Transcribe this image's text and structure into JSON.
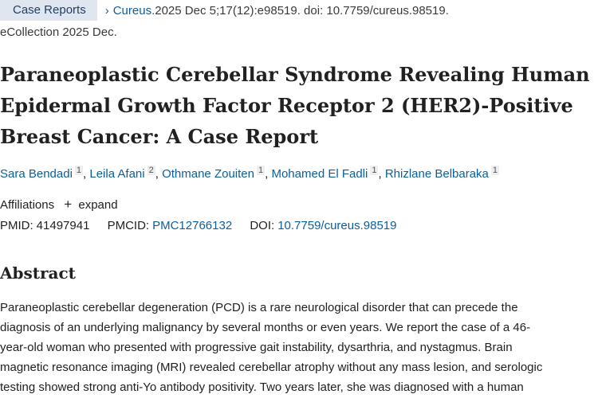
{
  "header": {
    "article_type": "Case Reports",
    "journal": "Cureus.",
    "citation": " 2025 Dec 5;17(12):e98519. doi: 10.7759/cureus.98519.",
    "ecollection": "eCollection 2025 Dec."
  },
  "title": "Paraneoplastic Cerebellar Syndrome Revealing Human Epidermal Growth Factor Receptor 2 (HER2)-Positive Breast Cancer: A Case Report",
  "authors": [
    {
      "name": "Sara Bendadi",
      "aff": "1"
    },
    {
      "name": "Leila Afani",
      "aff": "2"
    },
    {
      "name": "Othmane Zouiten",
      "aff": "1"
    },
    {
      "name": "Mohamed El Fadli",
      "aff": "1"
    },
    {
      "name": "Rhizlane Belbaraka",
      "aff": "1"
    }
  ],
  "affiliations": {
    "label": "Affiliations",
    "expand": "expand"
  },
  "ids": {
    "pmid_label": "PMID:",
    "pmid": "41497941",
    "pmcid_label": "PMCID:",
    "pmcid": "PMC12766132",
    "doi_label": "DOI:",
    "doi": "10.7759/cureus.98519"
  },
  "abstract": {
    "heading": "Abstract",
    "lines": [
      "Paraneoplastic cerebellar degeneration (PCD) is a rare neurological disorder that can precede the",
      "diagnosis of an underlying malignancy by several months or even years. We report the case of a 46-",
      "year-old woman who presented with progressive gait instability, dysarthria, and nystagmus. Brain",
      "magnetic resonance imaging (MRI) revealed cerebellar atrophy without any mass lesion, and serologic",
      "testing showed strong anti-Yo antibody positivity. Two years later, she was diagnosed with a human"
    ]
  }
}
